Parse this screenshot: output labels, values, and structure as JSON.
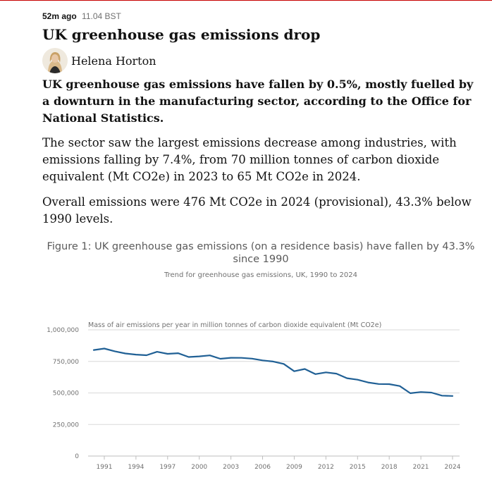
{
  "post": {
    "time_ago": "52m ago",
    "timestamp": "11.04 BST",
    "headline": "UK greenhouse gas emissions drop",
    "author": "Helena Horton",
    "standfirst": "UK greenhouse gas emissions have fallen by 0.5%, mostly fuelled by a downturn in the manufacturing sector, according to the Office for National Statistics.",
    "paragraphs": [
      "The sector saw the largest emissions decrease among industries, with emissions falling by 7.4%, from 70 million tonnes of carbon dioxide equivalent (Mt CO2e) in 2023 to 65 Mt CO2e in 2024.",
      "Overall emissions were 476 Mt CO2e in 2024 (provisional), 43.3% below 1990 levels."
    ]
  },
  "colors": {
    "accent_rule": "#c70000",
    "series_line": "#206095",
    "grid": "#d9d9d9"
  },
  "chart_data": {
    "type": "line",
    "title": "Figure 1: UK greenhouse gas emissions (on a residence basis) have fallen by 43.3% since 1990",
    "subtitle": "Trend for greenhouse gas emissions, UK, 1990 to 2024",
    "ylabel": "Mass of air emissions per year in million tonnes of carbon dioxide equivalent (Mt CO2e)",
    "xlabel": "",
    "xlim": [
      1990,
      2024
    ],
    "ylim": [
      0,
      1000000
    ],
    "x_ticks": [
      "1991",
      "1994",
      "1997",
      "2000",
      "2003",
      "2006",
      "2009",
      "2012",
      "2015",
      "2018",
      "2021",
      "2024"
    ],
    "y_ticks": [
      "0",
      "250,000",
      "500,000",
      "750,000",
      "1,000,000"
    ],
    "grid": "horizontal",
    "series": [
      {
        "x": [
          1990,
          1991,
          1992,
          1993,
          1994,
          1995,
          1996,
          1997,
          1998,
          1999,
          2000,
          2001,
          2002,
          2003,
          2004,
          2005,
          2006,
          2007,
          2008,
          2009,
          2010,
          2011,
          2012,
          2013,
          2014,
          2015,
          2016,
          2017,
          2018,
          2019,
          2020,
          2021,
          2022,
          2023,
          2024
        ],
        "values": [
          840000,
          852000,
          830000,
          813000,
          804000,
          799000,
          826000,
          810000,
          815000,
          785000,
          790000,
          798000,
          771000,
          779000,
          778000,
          772000,
          758000,
          749000,
          730000,
          672000,
          690000,
          649000,
          663000,
          653000,
          617000,
          605000,
          583000,
          571000,
          570000,
          555000,
          498000,
          507000,
          503000,
          479000,
          476000
        ]
      }
    ]
  }
}
